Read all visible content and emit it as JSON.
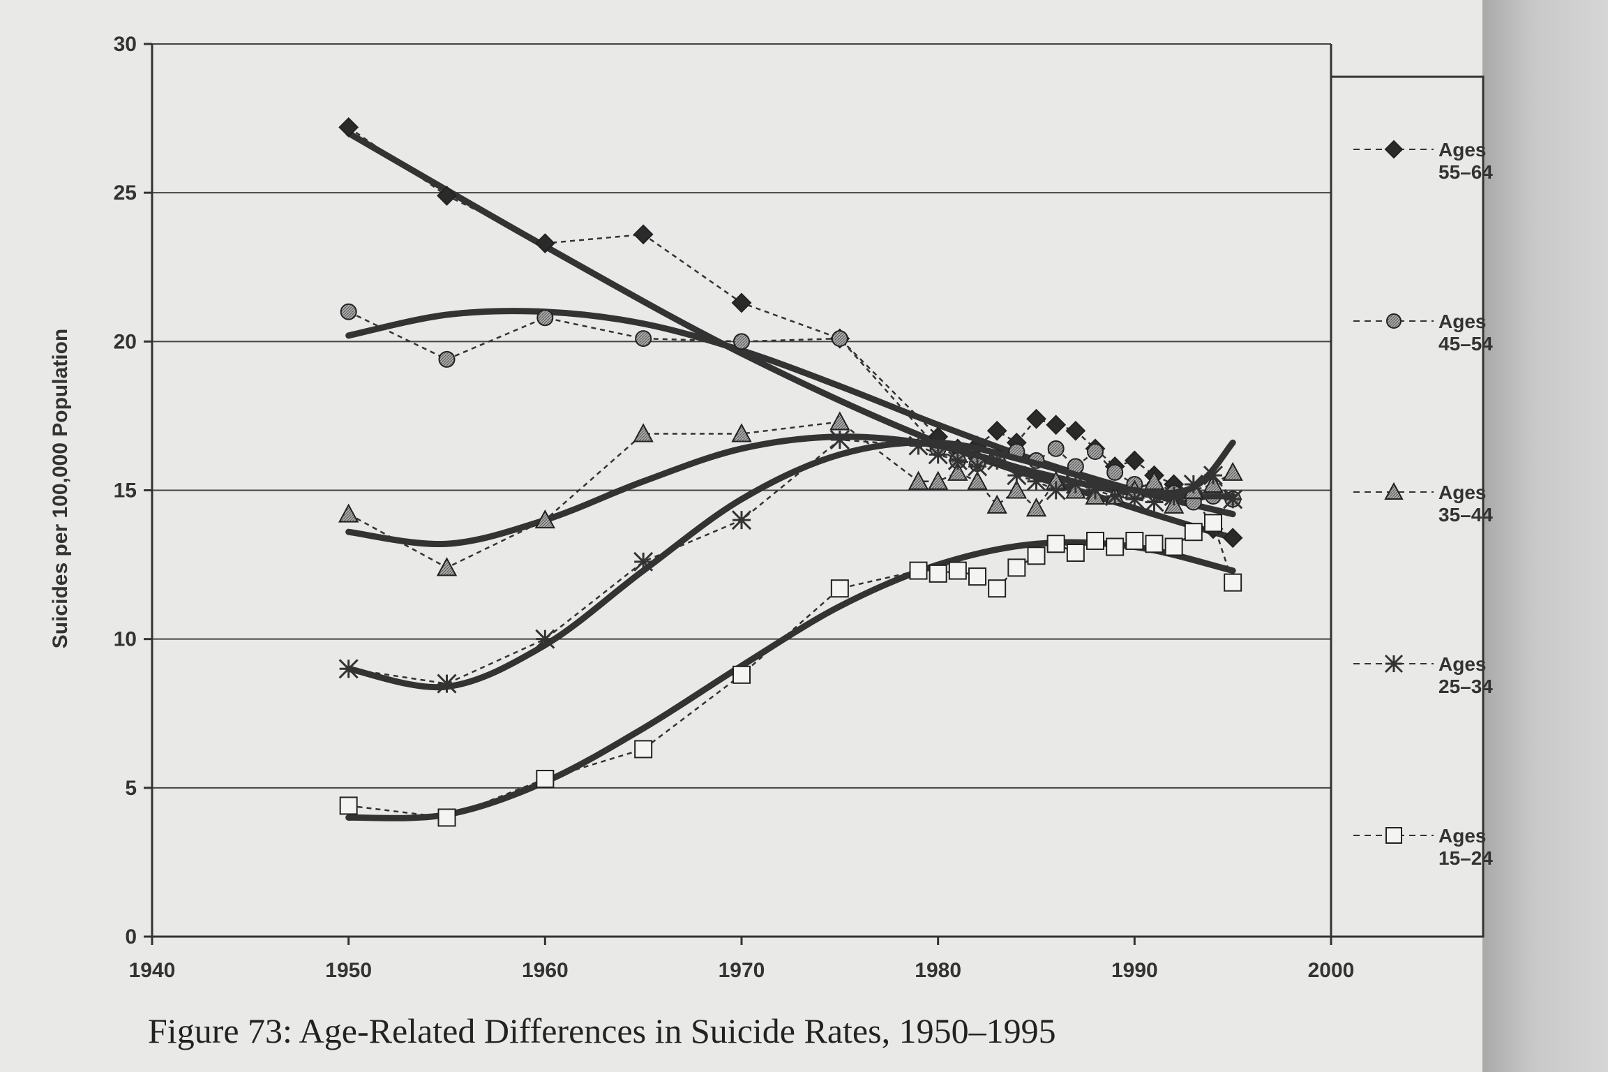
{
  "chart_data": {
    "type": "line",
    "title": "Figure 73: Age-Related Differences in Suicide Rates, 1950–1995",
    "xlabel": "",
    "ylabel": "Suicides per 100,000 Population",
    "xlim": [
      1940,
      2000
    ],
    "ylim": [
      0,
      30
    ],
    "xticks": [
      1940,
      1950,
      1960,
      1970,
      1980,
      1990,
      2000
    ],
    "yticks": [
      0,
      5,
      10,
      15,
      20,
      25,
      30
    ],
    "grid": "horizontal",
    "legend_position": "right",
    "series": [
      {
        "name": "Ages 55–64",
        "label1": "Ages",
        "label2": "55–64",
        "marker": "diamond",
        "x": [
          1950,
          1955,
          1960,
          1965,
          1970,
          1975,
          1980,
          1981,
          1982,
          1983,
          1984,
          1985,
          1986,
          1987,
          1988,
          1989,
          1990,
          1991,
          1992,
          1993,
          1994,
          1995
        ],
        "y": [
          27.2,
          24.9,
          23.3,
          23.6,
          21.3,
          20.1,
          16.8,
          16.4,
          16.5,
          17.0,
          16.6,
          17.4,
          17.2,
          17.0,
          16.4,
          15.8,
          16.0,
          15.5,
          15.2,
          14.9,
          13.7,
          13.4
        ],
        "trend_x": [
          1950,
          1960,
          1970,
          1980,
          1990,
          1995
        ],
        "trend_y": [
          27.0,
          23.2,
          19.6,
          16.6,
          14.4,
          13.4
        ]
      },
      {
        "name": "Ages 45–54",
        "label1": "Ages",
        "label2": "45–54",
        "marker": "circle",
        "x": [
          1950,
          1955,
          1960,
          1965,
          1970,
          1975,
          1980,
          1981,
          1982,
          1983,
          1984,
          1985,
          1986,
          1987,
          1988,
          1989,
          1990,
          1991,
          1992,
          1993,
          1994,
          1995
        ],
        "y": [
          21.0,
          19.4,
          20.8,
          20.1,
          20.0,
          20.1,
          16.4,
          16.0,
          15.9,
          16.1,
          16.3,
          16.0,
          16.4,
          15.8,
          16.3,
          15.6,
          15.2,
          15.1,
          14.9,
          14.6,
          14.8,
          14.7
        ],
        "trend_x": [
          1950,
          1955,
          1960,
          1965,
          1970,
          1975,
          1980,
          1985,
          1990,
          1995
        ],
        "trend_y": [
          20.2,
          20.9,
          21.0,
          20.6,
          19.7,
          18.5,
          17.2,
          16.0,
          15.0,
          14.2
        ]
      },
      {
        "name": "Ages 35–44",
        "label1": "Ages",
        "label2": "35–44",
        "marker": "triangle",
        "x": [
          1950,
          1955,
          1960,
          1965,
          1970,
          1975,
          1979,
          1980,
          1981,
          1982,
          1983,
          1984,
          1985,
          1986,
          1987,
          1988,
          1989,
          1990,
          1991,
          1992,
          1993,
          1994,
          1995
        ],
        "y": [
          14.2,
          12.4,
          14.0,
          16.9,
          16.9,
          17.3,
          15.3,
          15.3,
          15.6,
          15.3,
          14.5,
          15.0,
          14.4,
          15.3,
          15.0,
          14.8,
          14.8,
          15.0,
          15.3,
          14.5,
          15.0,
          15.2,
          15.6
        ],
        "trend_x": [
          1950,
          1955,
          1960,
          1965,
          1970,
          1975,
          1980,
          1985,
          1990,
          1995
        ],
        "trend_y": [
          13.6,
          13.2,
          14.0,
          15.3,
          16.4,
          16.8,
          16.5,
          15.6,
          14.9,
          14.8
        ]
      },
      {
        "name": "Ages 25–34",
        "label1": "Ages",
        "label2": "25–34",
        "marker": "asterisk",
        "x": [
          1950,
          1955,
          1960,
          1965,
          1970,
          1975,
          1979,
          1980,
          1981,
          1982,
          1983,
          1984,
          1985,
          1986,
          1987,
          1988,
          1989,
          1990,
          1991,
          1992,
          1993,
          1994,
          1995
        ],
        "y": [
          9.0,
          8.5,
          10.0,
          12.6,
          14.0,
          16.7,
          16.5,
          16.2,
          16.0,
          15.8,
          16.0,
          15.5,
          15.3,
          15.0,
          15.2,
          15.0,
          14.8,
          14.7,
          14.6,
          14.8,
          15.2,
          15.5,
          14.7
        ],
        "trend_x": [
          1950,
          1955,
          1960,
          1965,
          1970,
          1975,
          1980,
          1985,
          1990,
          1993,
          1995
        ],
        "trend_y": [
          9.0,
          8.4,
          9.8,
          12.3,
          14.7,
          16.2,
          16.6,
          15.9,
          15.0,
          15.1,
          16.6
        ]
      },
      {
        "name": "Ages 15–24",
        "label1": "Ages",
        "label2": "15–24",
        "marker": "square",
        "x": [
          1950,
          1955,
          1960,
          1965,
          1970,
          1975,
          1979,
          1980,
          1981,
          1982,
          1983,
          1984,
          1985,
          1986,
          1987,
          1988,
          1989,
          1990,
          1991,
          1992,
          1993,
          1994,
          1995
        ],
        "y": [
          4.4,
          4.0,
          5.3,
          6.3,
          8.8,
          11.7,
          12.3,
          12.2,
          12.3,
          12.1,
          11.7,
          12.4,
          12.8,
          13.2,
          12.9,
          13.3,
          13.1,
          13.3,
          13.2,
          13.1,
          13.6,
          13.9,
          11.9
        ],
        "trend_x": [
          1950,
          1955,
          1960,
          1965,
          1970,
          1975,
          1980,
          1985,
          1990,
          1995
        ],
        "trend_y": [
          4.0,
          4.1,
          5.2,
          7.0,
          9.1,
          11.1,
          12.5,
          13.2,
          13.1,
          12.3
        ]
      }
    ]
  }
}
